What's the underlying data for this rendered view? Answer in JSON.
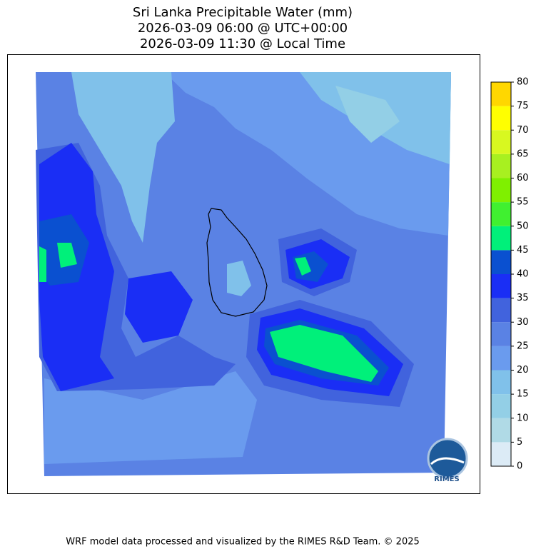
{
  "title_lines": [
    "Sri Lanka Precipitable Water (mm)",
    "2026-03-09 06:00 @ UTC+00:00",
    "2026-03-09 11:30 @ Local Time"
  ],
  "colorbar": {
    "levels": [
      0,
      5,
      10,
      15,
      20,
      25,
      30,
      35,
      40,
      45,
      50,
      55,
      60,
      65,
      70,
      75,
      80
    ],
    "colors": [
      "#dcebf6",
      "#b0dae6",
      "#93cfe6",
      "#80c1ea",
      "#6a9bee",
      "#5a82e4",
      "#4163dd",
      "#1a2ef5",
      "#0a50d0",
      "#00f07a",
      "#40f030",
      "#7ff000",
      "#a8f020",
      "#d8f820",
      "#ffff00",
      "#ffd700"
    ]
  },
  "logo_text": "RIMES",
  "footer": "WRF model data processed and visualized by the RIMES R&D Team. © 2025"
}
